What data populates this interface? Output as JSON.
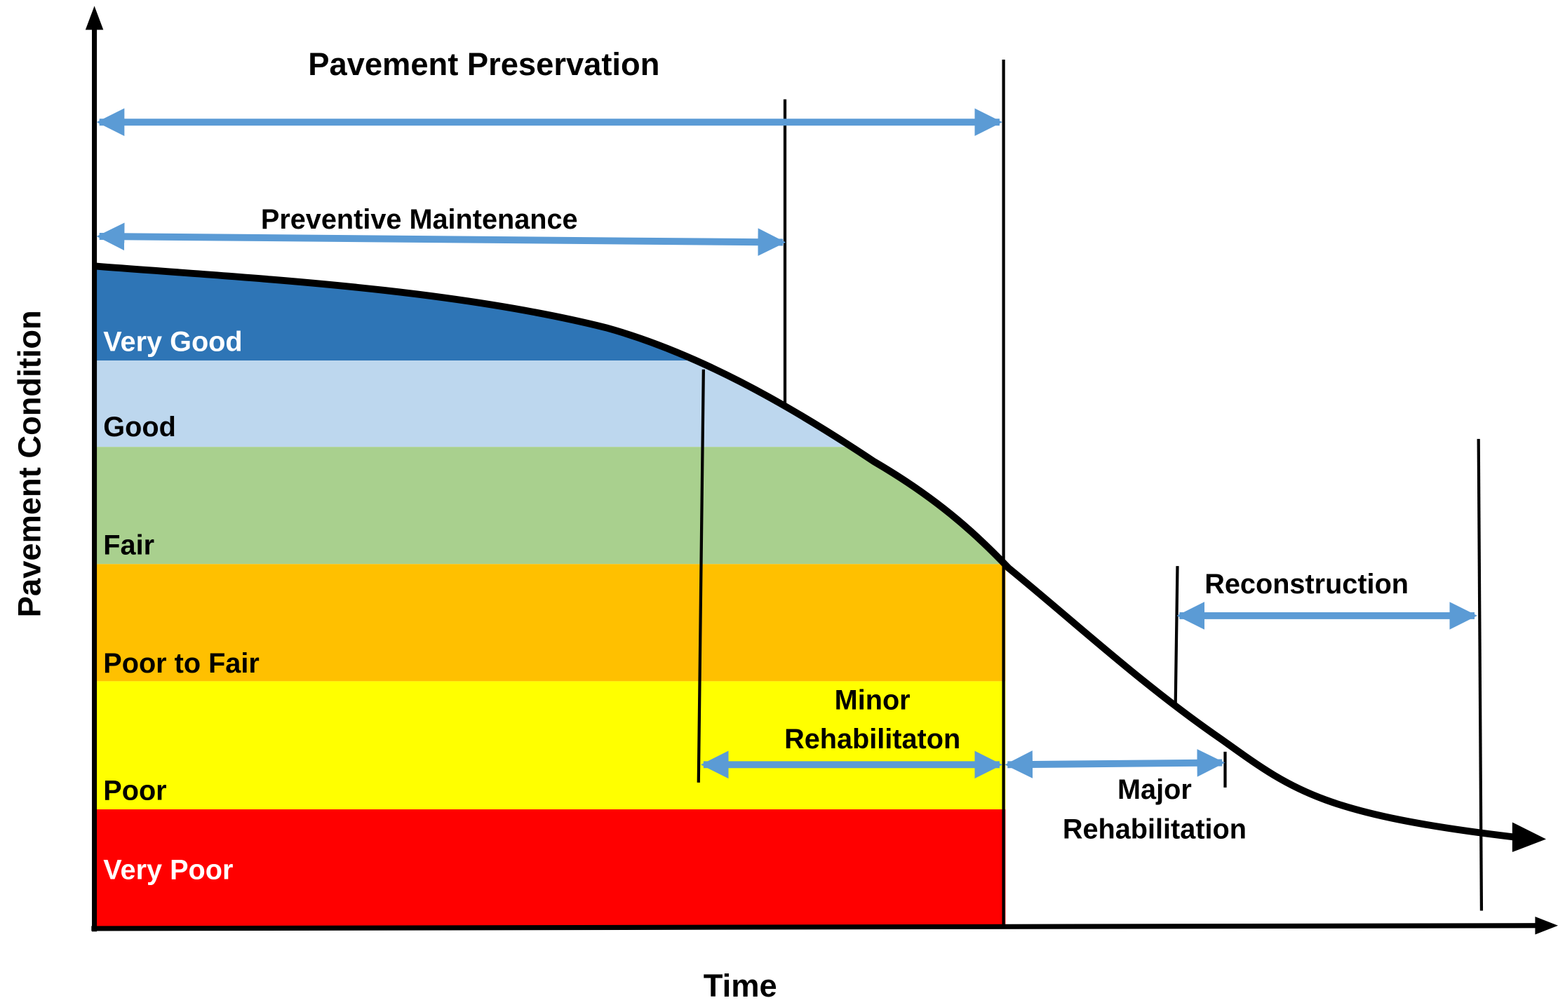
{
  "diagram": {
    "title": "Pavement Preservation",
    "intervals": {
      "preventive": "Preventive Maintenance",
      "minor": [
        "Minor",
        "Rehabilitaton"
      ],
      "major": [
        "Major",
        "Rehabilitation"
      ],
      "reconstruction": "Reconstruction"
    },
    "conditions": [
      "Very Good",
      "Good",
      "Fair",
      "Poor to Fair",
      "Poor",
      "Very Poor"
    ],
    "axes": {
      "x": "Time",
      "y": "Pavement Condition"
    }
  }
}
